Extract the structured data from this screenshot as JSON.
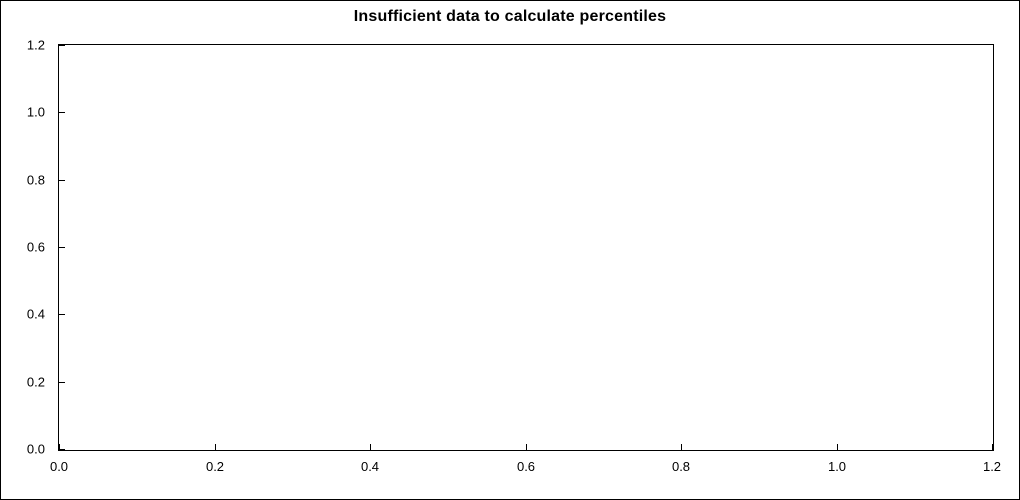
{
  "chart_data": {
    "type": "line",
    "title": "Insufficient data to calculate percentiles",
    "series": [],
    "x_ticks": [
      "0.0",
      "0.2",
      "0.4",
      "0.6",
      "0.8",
      "1.0",
      "1.2"
    ],
    "y_ticks": [
      "0.0",
      "0.2",
      "0.4",
      "0.6",
      "0.8",
      "1.0",
      "1.2"
    ],
    "xlim": [
      0.0,
      1.2
    ],
    "ylim": [
      0.0,
      1.2
    ],
    "xlabel": "",
    "ylabel": "",
    "grid": false,
    "legend_position": "none",
    "plot_background": "#ffffff",
    "axis_color": "#000000"
  }
}
